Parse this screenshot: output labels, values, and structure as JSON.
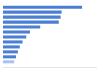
{
  "chart_data": {
    "type": "bar",
    "orientation": "horizontal",
    "categories": [
      null,
      null,
      null,
      null,
      null,
      null,
      null,
      null,
      null,
      null,
      null,
      null
    ],
    "values": [
      85,
      63,
      62,
      60,
      40,
      29,
      25,
      21,
      18,
      16,
      14,
      12
    ],
    "colors": [
      "#4a7fd4",
      "#4a7fd4",
      "#4a7fd4",
      "#4a7fd4",
      "#4a7fd4",
      "#4a7fd4",
      "#4a7fd4",
      "#4a7fd4",
      "#4a7fd4",
      "#4a7fd4",
      "#4a7fd4",
      "#a9c4ec"
    ],
    "xlim": [
      0,
      100
    ],
    "grid": false,
    "tick_labels": false
  }
}
